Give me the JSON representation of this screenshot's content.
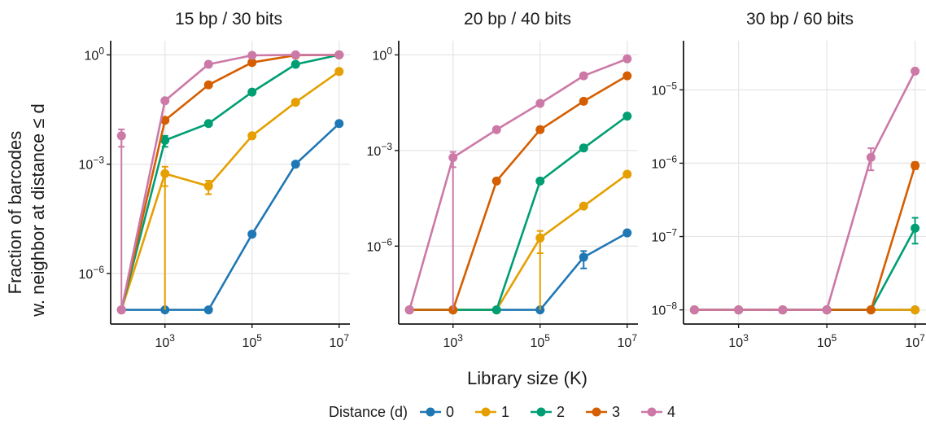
{
  "y_axis_title_lines": [
    "Fraction of barcodes",
    "w. neighbor at distance ≤ d"
  ],
  "x_axis_title": "Library size (K)",
  "legend_title": "Distance (d)",
  "series_colors": [
    "#1f77b4",
    "#e69f00",
    "#009e73",
    "#d55e00",
    "#cc79a7"
  ],
  "chart_data": [
    {
      "type": "line",
      "title": "15 bp / 30 bits",
      "xlabel": "Library size (K)",
      "ylabel": "Fraction of barcodes w. neighbor at distance ≤ d",
      "x_scale": "log10",
      "y_scale": "log10",
      "xlim": [
        100,
        10000000
      ],
      "ylim": [
        1e-07,
        1
      ],
      "x_ticks": [
        1000,
        100000,
        10000000
      ],
      "x_tick_labels": [
        "10^3",
        "10^5",
        "10^7"
      ],
      "y_ticks": [
        1e-06,
        0.001,
        1
      ],
      "y_tick_labels": [
        "10^−6",
        "10^−3",
        "10^0"
      ],
      "x": [
        100,
        1000,
        10000,
        100000,
        1000000,
        10000000
      ],
      "legend": "bottom",
      "series": [
        {
          "name": "0",
          "values": [
            1e-07,
            1e-07,
            1e-07,
            1.2e-05,
            0.001,
            0.013
          ]
        },
        {
          "name": "1",
          "values": [
            1e-07,
            0.00055,
            0.00025,
            0.006,
            0.05,
            0.35
          ],
          "errors": [
            0,
            0.0003,
            0.0001,
            0,
            0,
            0
          ]
        },
        {
          "name": "2",
          "values": [
            1e-07,
            0.0045,
            0.013,
            0.095,
            0.55,
            1.0
          ],
          "errors": [
            0,
            0.0015,
            0,
            0,
            0,
            0
          ]
        },
        {
          "name": "3",
          "values": [
            1e-07,
            0.016,
            0.15,
            0.62,
            0.98,
            1.0
          ]
        },
        {
          "name": "4",
          "values": [
            1e-07,
            0.055,
            0.55,
            0.97,
            1.0,
            1.0
          ],
          "errors": [
            0,
            0,
            0,
            0,
            0,
            0
          ]
        }
      ],
      "extra_points": [
        {
          "series": "4",
          "x": 100,
          "y": 0.006,
          "error": 0.003
        }
      ],
      "vertical_drops": [
        {
          "series": "4",
          "x": 100,
          "from": 0.006,
          "to": 1e-07
        },
        {
          "series": "1",
          "x": 1000,
          "from": 0.00055,
          "to": 1e-07
        }
      ]
    },
    {
      "type": "line",
      "title": "20 bp / 40 bits",
      "xlabel": "Library size (K)",
      "ylabel": "",
      "x_scale": "log10",
      "y_scale": "log10",
      "xlim": [
        100,
        10000000
      ],
      "ylim": [
        1e-08,
        1
      ],
      "x_ticks": [
        1000,
        100000,
        10000000
      ],
      "x_tick_labels": [
        "10^3",
        "10^5",
        "10^7"
      ],
      "y_ticks": [
        1e-06,
        0.001,
        1
      ],
      "y_tick_labels": [
        "10^−6",
        "10^−3",
        "10^0"
      ],
      "x": [
        100,
        1000,
        10000,
        100000,
        1000000,
        10000000
      ],
      "legend": "bottom",
      "series": [
        {
          "name": "0",
          "values": [
            1e-08,
            1e-08,
            1e-08,
            1e-08,
            4.5e-07,
            2.6e-06
          ],
          "errors": [
            0,
            0,
            0,
            0,
            2.5e-07,
            0
          ]
        },
        {
          "name": "1",
          "values": [
            1e-08,
            1e-08,
            1e-08,
            1.8e-06,
            1.8e-05,
            0.00018
          ],
          "errors": [
            0,
            0,
            0,
            1.2e-06,
            0,
            0
          ]
        },
        {
          "name": "2",
          "values": [
            1e-08,
            1e-08,
            1e-08,
            0.00011,
            0.0012,
            0.012
          ]
        },
        {
          "name": "3",
          "values": [
            1e-08,
            1e-08,
            0.00011,
            0.0045,
            0.035,
            0.22
          ]
        },
        {
          "name": "4",
          "values": [
            1e-08,
            0.0006,
            0.0045,
            0.03,
            0.22,
            0.75
          ],
          "errors": [
            0,
            0.0003,
            0,
            0,
            0,
            0
          ]
        }
      ],
      "vertical_drops": [
        {
          "series": "4",
          "x": 1000,
          "from": 0.0006,
          "to": 1e-08
        },
        {
          "series": "1",
          "x": 100000,
          "from": 1.8e-06,
          "to": 1e-08
        }
      ]
    },
    {
      "type": "line",
      "title": "30 bp / 60 bits",
      "xlabel": "Library size (K)",
      "ylabel": "",
      "x_scale": "log10",
      "y_scale": "log10",
      "xlim": [
        100,
        10000000
      ],
      "ylim": [
        1e-08,
        3e-05
      ],
      "x_ticks": [
        1000,
        100000,
        10000000
      ],
      "x_tick_labels": [
        "10^3",
        "10^5",
        "10^7"
      ],
      "y_ticks": [
        1e-08,
        1e-07,
        1e-06,
        1e-05
      ],
      "y_tick_labels": [
        "10^−8",
        "10^−7",
        "10^−6",
        "10^−5"
      ],
      "x": [
        100,
        1000,
        10000,
        100000,
        1000000,
        10000000
      ],
      "legend": "bottom",
      "series": [
        {
          "name": "0",
          "values": [
            1e-08,
            1e-08,
            1e-08,
            1e-08,
            1e-08,
            1e-08
          ]
        },
        {
          "name": "1",
          "values": [
            1e-08,
            1e-08,
            1e-08,
            1e-08,
            1e-08,
            1e-08
          ]
        },
        {
          "name": "2",
          "values": [
            1e-08,
            1e-08,
            1e-08,
            1e-08,
            1e-08,
            1.3e-07
          ],
          "errors": [
            0,
            0,
            0,
            0,
            0,
            5e-08
          ]
        },
        {
          "name": "3",
          "values": [
            1e-08,
            1e-08,
            1e-08,
            1e-08,
            1e-08,
            9.3e-07
          ],
          "errors": [
            0,
            0,
            0,
            0,
            0,
            1e-07
          ]
        },
        {
          "name": "4",
          "values": [
            1e-08,
            1e-08,
            1e-08,
            1e-08,
            1.2e-06,
            1.8e-05
          ],
          "errors": [
            0,
            0,
            0,
            0,
            4e-07,
            0
          ]
        }
      ]
    }
  ]
}
